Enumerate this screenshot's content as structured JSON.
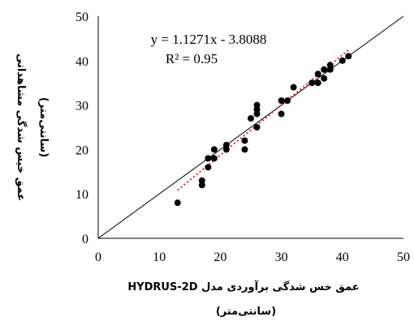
{
  "chart_data": {
    "type": "scatter",
    "title": "",
    "xlabel": "عمق خس شدگی برآوردی مدل HYDRUS-2D",
    "xlabel_unit": "(سانتی‌متر)",
    "ylabel": "عمق خیس شدگی مشاهداتی",
    "ylabel_unit": "(سانتی‌متر)",
    "xlim": [
      0,
      50
    ],
    "ylim": [
      0,
      50
    ],
    "xticks": [
      "0",
      "10",
      "20",
      "30",
      "40",
      "50"
    ],
    "yticks": [
      "0",
      "10",
      "20",
      "30",
      "40",
      "50"
    ],
    "points": [
      {
        "x": 13,
        "y": 8
      },
      {
        "x": 17,
        "y": 12
      },
      {
        "x": 17,
        "y": 13
      },
      {
        "x": 18,
        "y": 16
      },
      {
        "x": 18,
        "y": 18
      },
      {
        "x": 19,
        "y": 18
      },
      {
        "x": 19,
        "y": 20
      },
      {
        "x": 21,
        "y": 20
      },
      {
        "x": 21,
        "y": 21
      },
      {
        "x": 24,
        "y": 20
      },
      {
        "x": 24,
        "y": 22
      },
      {
        "x": 25,
        "y": 27
      },
      {
        "x": 26,
        "y": 25
      },
      {
        "x": 26,
        "y": 28
      },
      {
        "x": 26,
        "y": 29
      },
      {
        "x": 26,
        "y": 30
      },
      {
        "x": 30,
        "y": 28
      },
      {
        "x": 30,
        "y": 31
      },
      {
        "x": 31,
        "y": 31
      },
      {
        "x": 32,
        "y": 34
      },
      {
        "x": 35,
        "y": 35
      },
      {
        "x": 36,
        "y": 35
      },
      {
        "x": 36,
        "y": 37
      },
      {
        "x": 37,
        "y": 36
      },
      {
        "x": 37,
        "y": 38
      },
      {
        "x": 38,
        "y": 38
      },
      {
        "x": 38,
        "y": 39
      },
      {
        "x": 40,
        "y": 40
      },
      {
        "x": 41,
        "y": 41
      }
    ],
    "reference_line": {
      "type": "1:1",
      "color": "#000000",
      "from": [
        0,
        0
      ],
      "to": [
        50,
        50
      ]
    },
    "trendline": {
      "slope": 1.1271,
      "intercept": -3.8088,
      "x_range": [
        13,
        41
      ],
      "color": "#e8251f",
      "style": "dotted"
    },
    "annotations": {
      "equation": "y = 1.1271x - 3.8088",
      "r2": "R² = 0.95"
    },
    "marker_color": "#000000",
    "grid": false,
    "legend": "none"
  }
}
